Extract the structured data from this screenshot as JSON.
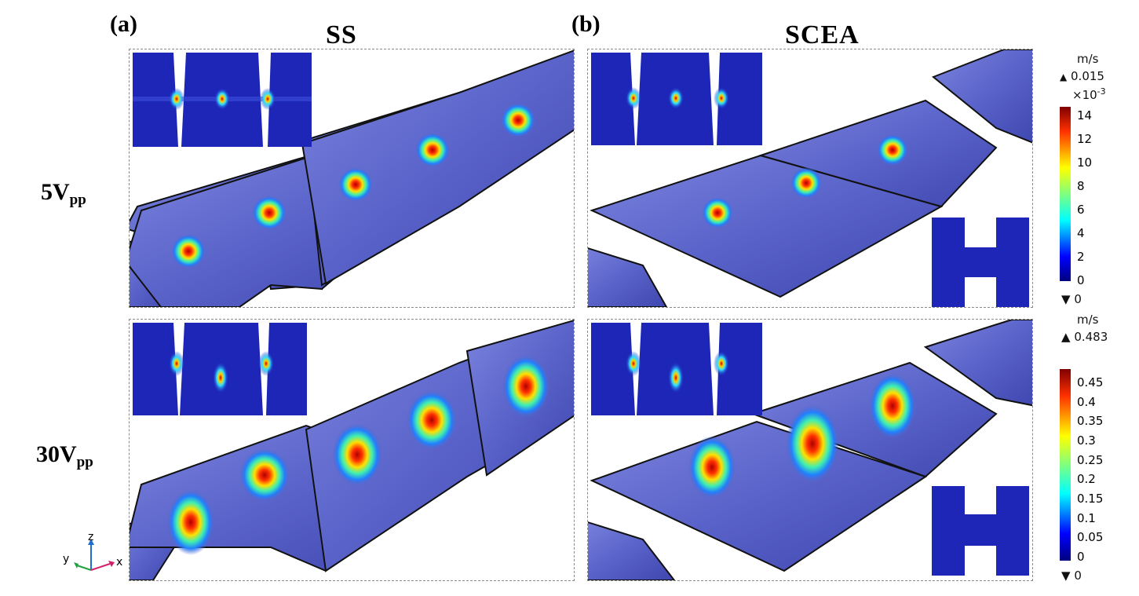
{
  "panels": {
    "a": "(a)",
    "b": "(b)"
  },
  "columns": {
    "ss": "SS",
    "scea": "SCEA"
  },
  "rows": {
    "r1": {
      "main": "5V",
      "sub": "pp"
    },
    "r2": {
      "main": "30V",
      "sub": "pp"
    }
  },
  "colorbar1": {
    "unit": "m/s",
    "max_label": "0.015",
    "exponent_base": "×10",
    "exponent": "-3",
    "ticks": [
      "14",
      "12",
      "10",
      "8",
      "6",
      "4",
      "2",
      "0"
    ],
    "min_label": "0"
  },
  "colorbar2": {
    "unit": "m/s",
    "max_label": "0.483",
    "ticks": [
      "0.45",
      "0.4",
      "0.35",
      "0.3",
      "0.25",
      "0.2",
      "0.15",
      "0.1",
      "0.05",
      "0"
    ],
    "min_label": "0"
  },
  "axes": {
    "z": "z",
    "y": "y",
    "x": "x"
  },
  "colors": {
    "plate": "#5a63c9",
    "insetBg": "#2a2fa8",
    "scale": [
      "#00007f",
      "#0000ff",
      "#00ffff",
      "#7fff7f",
      "#ffff00",
      "#ff7f00",
      "#ff0000",
      "#7f0000"
    ]
  }
}
